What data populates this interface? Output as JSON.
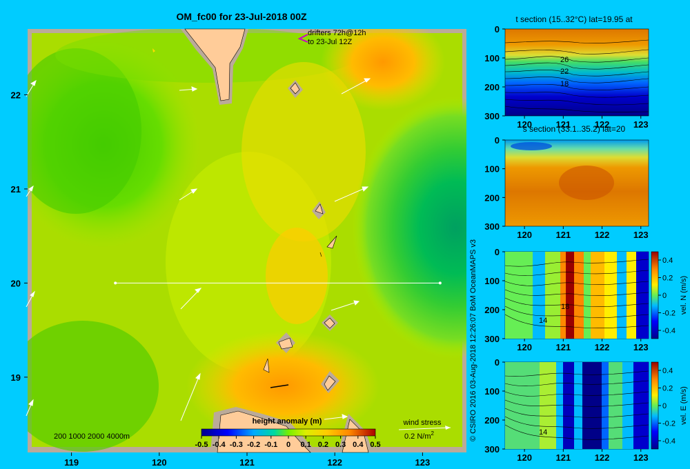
{
  "main_map": {
    "title": "OM_fc00 for 23-Jul-2018 00Z",
    "drifters": [
      "drifters 72h@12h",
      "to 23-Jul 12Z"
    ],
    "xticks": [
      119,
      120,
      121,
      122,
      123
    ],
    "yticks": [
      22,
      21,
      20,
      19
    ],
    "xlim": [
      118.5,
      123.5
    ],
    "ylim": [
      18.2,
      22.7
    ],
    "depth_legend": "200  1000  2000  4000m",
    "colorbar_title": "height anomaly (m)",
    "colorbar_ticks": [
      "-0.5",
      "-0.4",
      "-0.3",
      "-0.2",
      "-0.1",
      "0",
      "0.1",
      "0.2",
      "0.3",
      "0.4",
      "0.5"
    ],
    "wind_label": "wind stress",
    "wind_units": "0.2 N/m",
    "wind_units_sup": "2",
    "section_line": {
      "lat": 20.0,
      "lon_start": 119.5,
      "lon_end": 123.2
    }
  },
  "colors": {
    "background": "#00ccff",
    "land": "#ffcc99",
    "shelf": "#bbaa99",
    "drifter_marker": "#cc00cc",
    "section_line": "#ffffff"
  },
  "credit": "© CSIRO 2016   03-Aug-2018 12:26:07 BoM OceanMAPS v3",
  "chart_data": [
    {
      "type": "heatmap",
      "title": "t section (15..32°C) lat=19.95 at",
      "xticks": [
        120,
        121,
        122,
        123
      ],
      "yticks": [
        0,
        100,
        200,
        300
      ],
      "xlim": [
        119.5,
        123.2
      ],
      "ylim": [
        300,
        0
      ],
      "contour_labels": [
        "26",
        "22",
        "18"
      ]
    },
    {
      "type": "heatmap",
      "title": "s section (33.1..35.2) lat=20",
      "xticks": [
        120,
        121,
        122,
        123
      ],
      "yticks": [
        0,
        100,
        200,
        300
      ],
      "xlim": [
        119.5,
        123.2
      ],
      "ylim": [
        300,
        0
      ]
    },
    {
      "type": "heatmap",
      "xticks": [
        120,
        121,
        122,
        123
      ],
      "yticks": [
        0,
        100,
        200,
        300
      ],
      "xlim": [
        119.5,
        123.2
      ],
      "ylim": [
        300,
        0
      ],
      "contour_labels": [
        "18",
        "14"
      ],
      "colorbar_label": "vel. N  (m/s)",
      "colorbar_ticks": [
        "0.4",
        "0.2",
        "0",
        "-0.2",
        "-0.4"
      ]
    },
    {
      "type": "heatmap",
      "xticks": [
        120,
        121,
        122,
        123
      ],
      "yticks": [
        0,
        100,
        200,
        300
      ],
      "xlim": [
        119.5,
        123.2
      ],
      "ylim": [
        300,
        0
      ],
      "contour_labels": [
        "14"
      ],
      "colorbar_label": "vel. E  (m/s)",
      "colorbar_ticks": [
        "0.4",
        "0.2",
        "0",
        "-0.2",
        "-0.4"
      ]
    }
  ]
}
